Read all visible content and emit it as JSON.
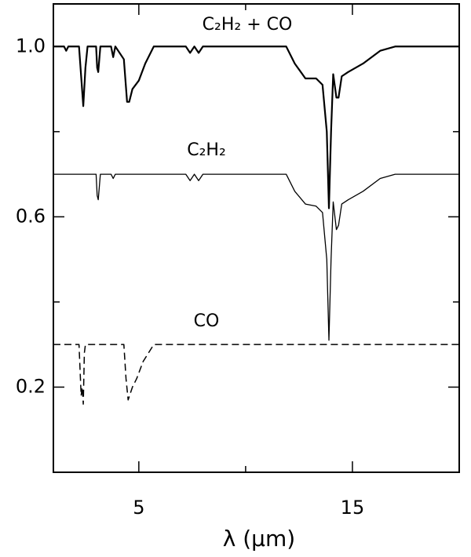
{
  "chart_data": {
    "type": "line",
    "xlabel": "λ (μm)",
    "xlim": [
      1,
      20
    ],
    "xticks": [
      5,
      15
    ],
    "xminorticks": [
      10
    ],
    "ylim": [
      0,
      1.1
    ],
    "yticks": [
      {
        "value": 1,
        "label": "1.0"
      },
      0.6,
      0.2
    ],
    "yminorticks": [
      0.4,
      0.8
    ],
    "series": [
      {
        "name": "C₂H₂ + CO",
        "color": "#000000",
        "style": "solid",
        "width": 2.2,
        "x": [
          1.0,
          1.5,
          1.6,
          1.7,
          2.2,
          2.3,
          2.4,
          2.5,
          2.6,
          3.0,
          3.05,
          3.1,
          3.15,
          3.2,
          3.7,
          3.8,
          3.9,
          4.3,
          4.45,
          4.55,
          4.7,
          5.0,
          5.3,
          5.7,
          7.2,
          7.4,
          7.6,
          7.8,
          8.0,
          8.2,
          11.9,
          12.3,
          12.8,
          13.3,
          13.6,
          13.8,
          13.9,
          14.0,
          14.1,
          14.25,
          14.35,
          14.5,
          14.8,
          15.5,
          16.3,
          17.0,
          20.0
        ],
        "values": [
          1.0,
          1.0,
          0.99,
          1.0,
          1.0,
          0.93,
          0.86,
          0.95,
          1.0,
          1.0,
          0.95,
          0.94,
          0.97,
          1.0,
          1.0,
          0.975,
          1.0,
          0.97,
          0.87,
          0.87,
          0.9,
          0.92,
          0.96,
          1.0,
          1.0,
          0.985,
          1.0,
          0.985,
          1.0,
          1.0,
          1.0,
          0.96,
          0.925,
          0.925,
          0.91,
          0.8,
          0.62,
          0.8,
          0.935,
          0.88,
          0.88,
          0.93,
          0.94,
          0.96,
          0.99,
          1.0,
          1.0
        ]
      },
      {
        "name": "C₂H₂",
        "color": "#000000",
        "style": "solid",
        "width": 1.3,
        "x": [
          1.0,
          3.0,
          3.05,
          3.1,
          3.15,
          3.2,
          3.7,
          3.8,
          3.9,
          7.2,
          7.4,
          7.6,
          7.8,
          8.0,
          8.2,
          11.9,
          12.3,
          12.8,
          13.3,
          13.6,
          13.8,
          13.9,
          14.0,
          14.1,
          14.25,
          14.35,
          14.5,
          14.8,
          15.5,
          16.3,
          17.0,
          20.0
        ],
        "values": [
          0.7,
          0.7,
          0.65,
          0.64,
          0.67,
          0.7,
          0.7,
          0.69,
          0.7,
          0.7,
          0.685,
          0.7,
          0.685,
          0.7,
          0.7,
          0.7,
          0.66,
          0.63,
          0.625,
          0.61,
          0.5,
          0.31,
          0.5,
          0.635,
          0.57,
          0.58,
          0.63,
          0.64,
          0.66,
          0.69,
          0.7,
          0.7
        ]
      },
      {
        "name": "CO",
        "color": "#000000",
        "style": "dashed",
        "width": 1.5,
        "x": [
          1.0,
          2.2,
          2.3,
          2.35,
          2.4,
          2.45,
          2.5,
          4.3,
          4.4,
          4.5,
          4.7,
          4.9,
          5.2,
          5.7,
          20.0
        ],
        "values": [
          0.3,
          0.3,
          0.18,
          0.2,
          0.16,
          0.28,
          0.3,
          0.3,
          0.22,
          0.17,
          0.2,
          0.22,
          0.26,
          0.3,
          0.3
        ]
      }
    ]
  }
}
